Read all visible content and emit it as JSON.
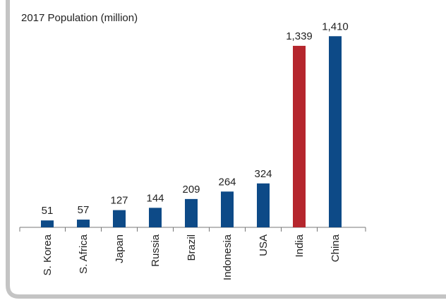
{
  "chart_data": {
    "type": "bar",
    "title": "2017 Population (million)",
    "categories": [
      "S. Korea",
      "S. Africa",
      "Japan",
      "Russia",
      "Brazil",
      "Indonesia",
      "USA",
      "India",
      "China"
    ],
    "values": [
      51,
      57,
      127,
      144,
      209,
      264,
      324,
      1339,
      1410
    ],
    "value_labels": [
      "51",
      "57",
      "127",
      "144",
      "209",
      "264",
      "324",
      "1,339",
      "1,410"
    ],
    "colors": [
      "#0d4a87",
      "#0d4a87",
      "#0d4a87",
      "#0d4a87",
      "#0d4a87",
      "#0d4a87",
      "#0d4a87",
      "#b5262d",
      "#0d4a87"
    ],
    "ylim": [
      0,
      1500
    ]
  }
}
